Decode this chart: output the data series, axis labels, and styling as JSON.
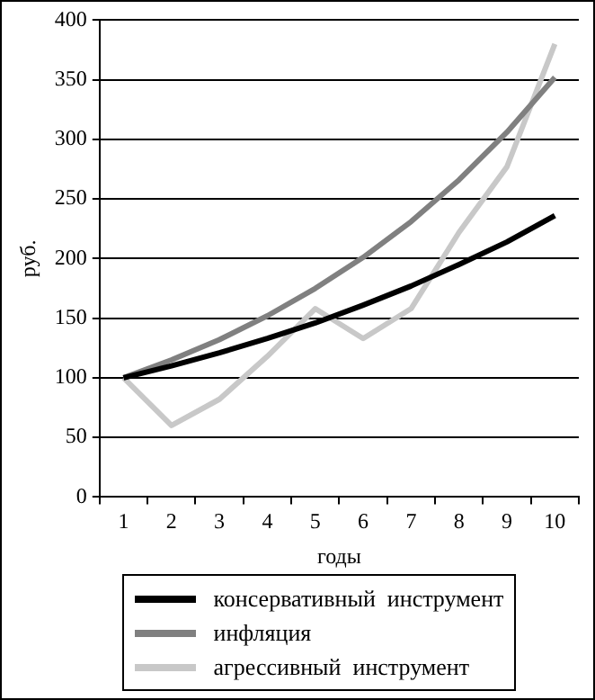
{
  "chart_data": {
    "type": "line",
    "xlabel": "годы",
    "ylabel": "руб.",
    "categories": [
      "1",
      "2",
      "3",
      "4",
      "5",
      "6",
      "7",
      "8",
      "9",
      "10"
    ],
    "series": [
      {
        "name": "консервативный  инструмент",
        "color": "#000000",
        "values": [
          100,
          110,
          121,
          133,
          146,
          161,
          177,
          195,
          214,
          236
        ]
      },
      {
        "name": "инфляция",
        "color": "#808080",
        "values": [
          100,
          115,
          132,
          152,
          175,
          201,
          231,
          266,
          306,
          352
        ]
      },
      {
        "name": "агрессивный  инструмент",
        "color": "#c8c8c8",
        "values": [
          100,
          60,
          82,
          118,
          158,
          133,
          158,
          222,
          277,
          380
        ]
      }
    ],
    "ylim": [
      0,
      400
    ],
    "yticks": [
      0,
      50,
      100,
      150,
      200,
      250,
      300,
      350,
      400
    ],
    "grid": "y",
    "legend": "bottom",
    "marker": "none",
    "line_style": "solid"
  }
}
